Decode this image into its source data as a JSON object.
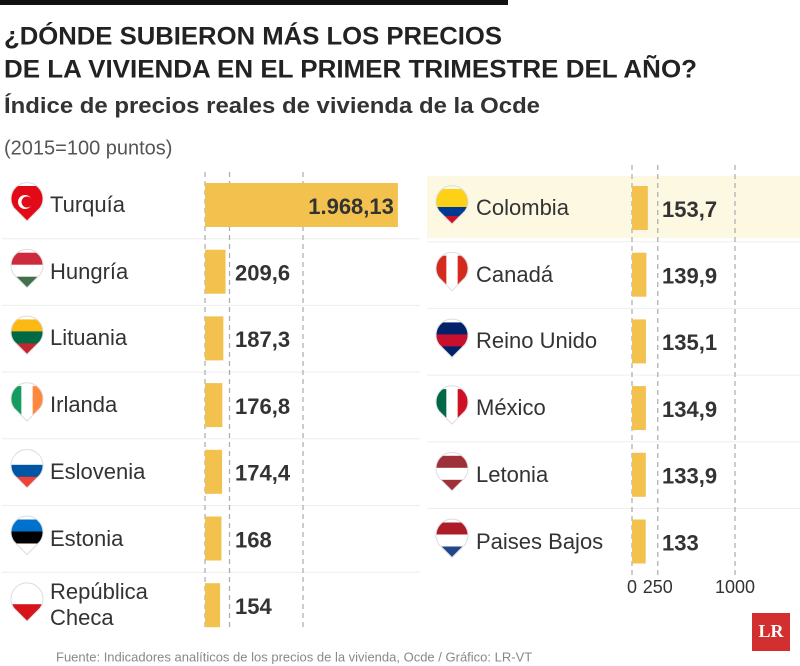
{
  "header": {
    "title_lines": [
      "¿DÓNDE SUBIERON MÁS LOS PRECIOS",
      "DE LA VIVIENDA EN EL PRIMER TRIMESTRE DEL AÑO?"
    ],
    "subtitle": "Índice de precios reales de vivienda de la Ocde",
    "note": "(2015=100 puntos)"
  },
  "chart_data": [
    {
      "type": "bar",
      "orientation": "horizontal",
      "color": "#f2c14e",
      "categories": [
        "Turquía",
        "Hungría",
        "Lituania",
        "Irlanda",
        "Eslovenia",
        "Estonia",
        "República Checa"
      ],
      "values": [
        1968.13,
        209.6,
        187.3,
        176.8,
        174.4,
        168,
        154
      ],
      "value_labels": [
        "1.968,13",
        "209,6",
        "187,3",
        "176,8",
        "174,4",
        "168",
        "154"
      ],
      "xlim": [
        0,
        2000
      ]
    },
    {
      "type": "bar",
      "orientation": "horizontal",
      "color": "#f2c14e",
      "categories": [
        "Colombia",
        "Canadá",
        "Reino Unido",
        "México",
        "Letonia",
        "Paises Bajos"
      ],
      "values": [
        153.7,
        139.9,
        135.1,
        134.9,
        133.9,
        133
      ],
      "value_labels": [
        "153,7",
        "139,9",
        "135,1",
        "134,9",
        "133,9",
        "133"
      ],
      "highlight_index": 0,
      "xlim": [
        0,
        2000
      ],
      "xticks": [
        0,
        250,
        1000
      ]
    }
  ],
  "source": "Fuente: Indicadores analíticos de los precios de la vivienda, Ocde / Gráfico: LR-VT",
  "logo": "LR"
}
